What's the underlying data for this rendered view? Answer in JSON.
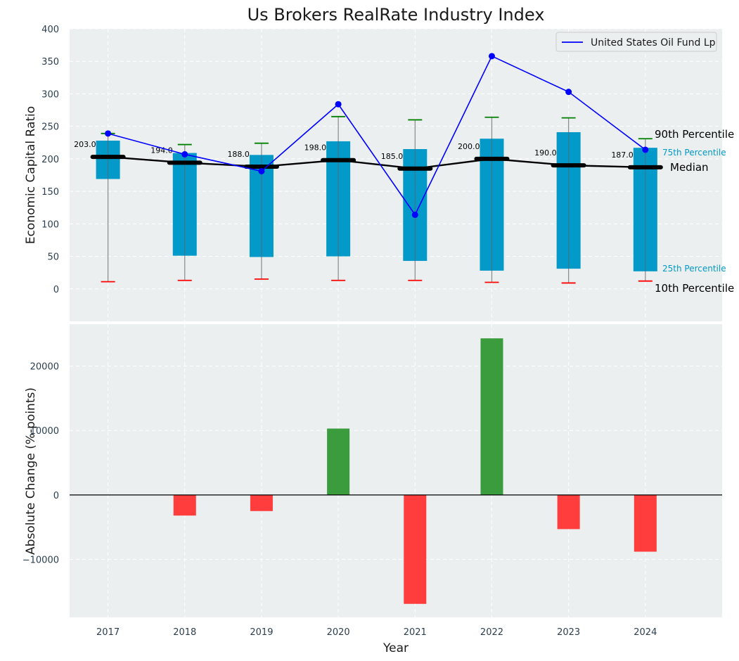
{
  "chart_data": [
    {
      "type": "box",
      "title": "Us Brokers RealRate Industry Index",
      "ylabel": "Economic Capital Ratio",
      "ylim": [
        -50,
        400
      ],
      "yticks": [
        0,
        50,
        100,
        150,
        200,
        250,
        300,
        350,
        400
      ],
      "grid": true,
      "categories": [
        "2017",
        "2018",
        "2019",
        "2020",
        "2021",
        "2022",
        "2023",
        "2024"
      ],
      "p10": [
        11,
        13,
        15,
        13,
        13,
        10,
        9,
        12
      ],
      "p25": [
        169,
        51,
        49,
        50,
        43,
        28,
        31,
        27
      ],
      "median": [
        203,
        194,
        188,
        198,
        185,
        200,
        190,
        187
      ],
      "p75": [
        228,
        209,
        206,
        227,
        215,
        231,
        241,
        217
      ],
      "p90": [
        239,
        222,
        224,
        265,
        260,
        264,
        263,
        231
      ],
      "median_labels": [
        "203.0",
        "194.0",
        "188.0",
        "198.0",
        "185.0",
        "200.0",
        "190.0",
        "187.0"
      ],
      "series": [
        {
          "name": "United States Oil Fund Lp",
          "values": [
            239,
            207,
            181,
            284,
            114,
            358,
            303,
            214
          ],
          "color": "#0000ff"
        }
      ],
      "legend": "top-right",
      "annotations": {
        "p90": "90th Percentile",
        "p75": "75th Percentile",
        "median": "Median",
        "p25": "25th Percentile",
        "p10": "10th Percentile"
      },
      "colors": {
        "box": "#0399c8",
        "median": "#000000",
        "p90_cap": "#008000",
        "p10_cap": "#ff0000",
        "background": "#ebeff0"
      }
    },
    {
      "type": "bar",
      "xlabel": "Year",
      "ylabel": "Absolute Change (%-points)",
      "ylim": [
        -19000,
        26500
      ],
      "yticks": [
        -10000,
        0,
        10000,
        20000
      ],
      "ytick_labels": [
        "−10000",
        "0",
        "10000",
        "20000"
      ],
      "grid": true,
      "categories": [
        "2017",
        "2018",
        "2019",
        "2020",
        "2021",
        "2022",
        "2023",
        "2024"
      ],
      "values": [
        0,
        -3200,
        -2500,
        10300,
        -16900,
        24300,
        -5300,
        -8800
      ],
      "colors": {
        "positive": "#3a9c3d",
        "negative": "#ff3d3d",
        "background": "#ebeff0"
      }
    }
  ]
}
